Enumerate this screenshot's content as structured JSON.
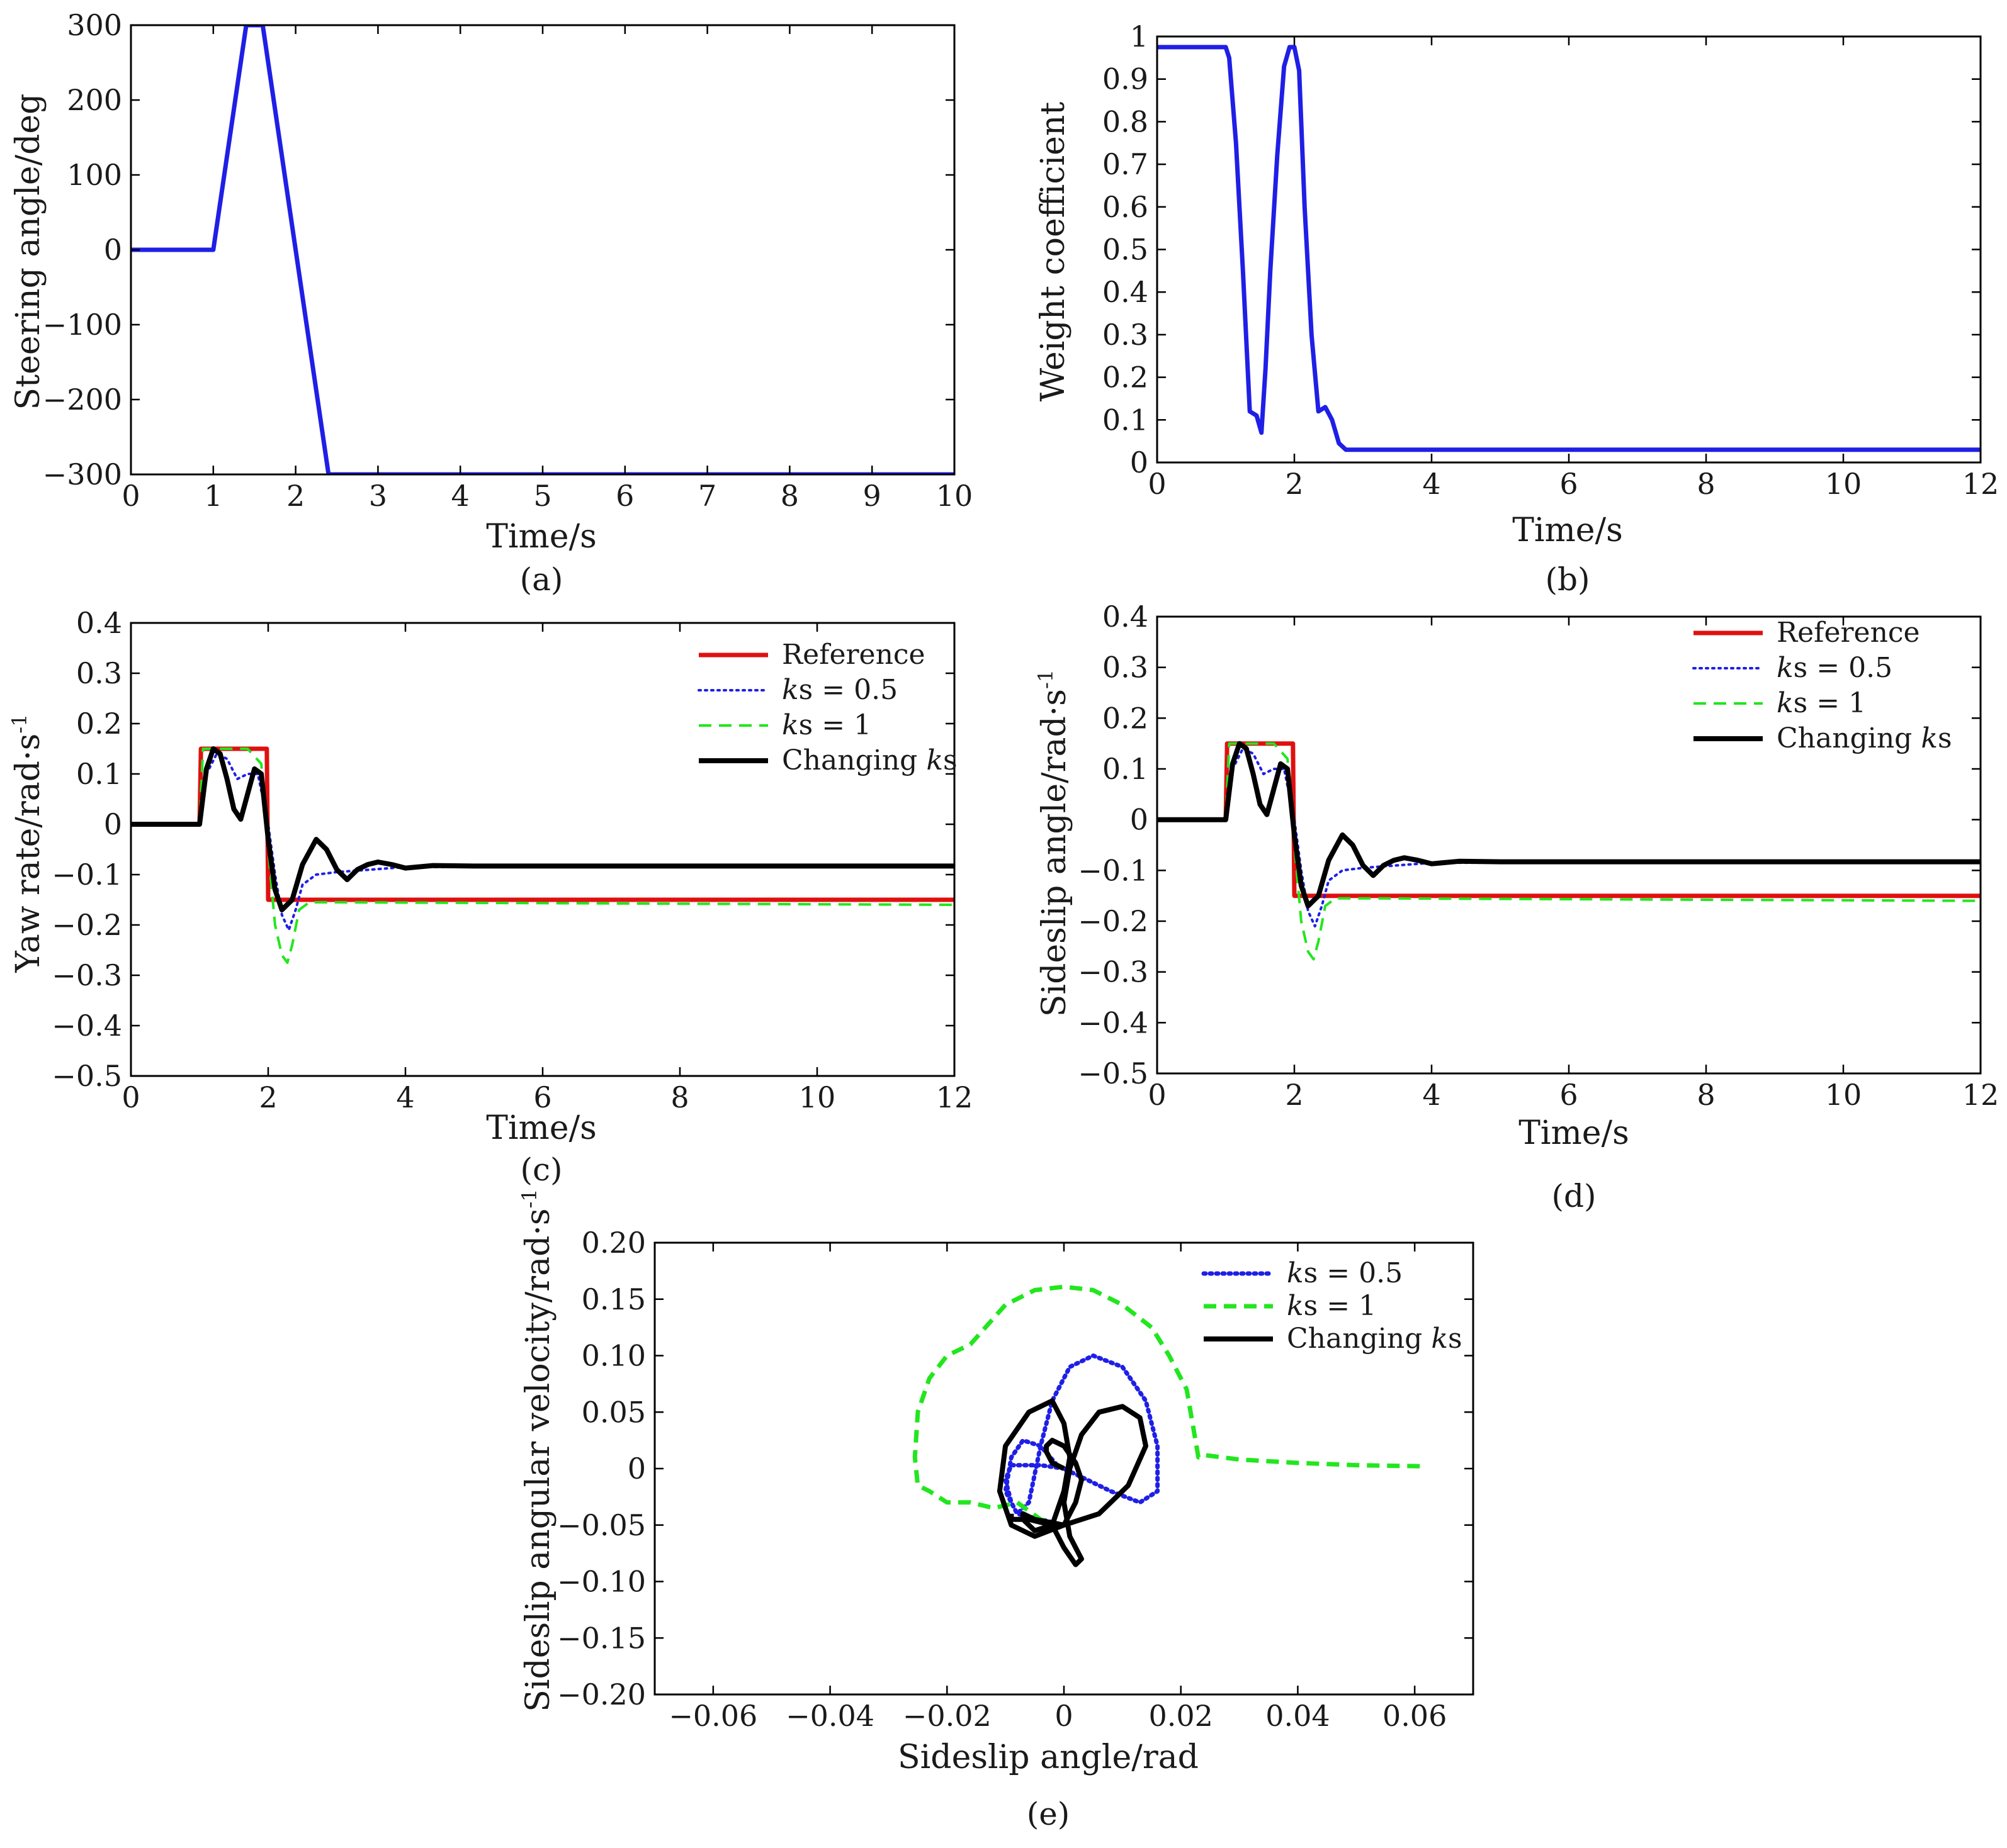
{
  "figure": {
    "panel_labels": [
      "(a)",
      "(b)",
      "(c)",
      "(d)",
      "(e)"
    ]
  },
  "colors": {
    "blue": "#1f1fe6",
    "red": "#e01010",
    "green": "#22e61e",
    "black": "#000000"
  },
  "chart_data": [
    {
      "id": "a",
      "type": "line",
      "title": "",
      "panel_label": "(a)",
      "xlabel": "Time/s",
      "ylabel": "Steering angle/deg",
      "xlim": [
        0,
        10
      ],
      "ylim": [
        -300,
        300
      ],
      "xticks": [
        0,
        1,
        2,
        3,
        4,
        5,
        6,
        7,
        8,
        9,
        10
      ],
      "xtick_labels": [
        "0",
        "1",
        "2",
        "3",
        "4",
        "5",
        "6",
        "7",
        "8",
        "9",
        "10"
      ],
      "yticks": [
        -300,
        -200,
        -100,
        0,
        100,
        200,
        300
      ],
      "ytick_labels": [
        "−300",
        "−200",
        "−100",
        "0",
        "100",
        "200",
        "300"
      ],
      "series": [
        {
          "name": "Steering angle",
          "color": "#1f1fe6",
          "dash": "solid",
          "x": [
            0,
            1.0,
            1.4,
            1.6,
            2.4,
            10
          ],
          "y": [
            0,
            0,
            300,
            300,
            -300,
            -300
          ]
        }
      ]
    },
    {
      "id": "b",
      "type": "line",
      "title": "",
      "panel_label": "(b)",
      "xlabel": "Time/s",
      "ylabel": "Weight coefficient",
      "xlim": [
        0,
        12
      ],
      "ylim": [
        0,
        1
      ],
      "xticks": [
        0,
        2,
        4,
        6,
        8,
        10,
        12
      ],
      "xtick_labels": [
        "0",
        "2",
        "4",
        "6",
        "8",
        "10",
        "12"
      ],
      "yticks": [
        0,
        0.1,
        0.2,
        0.3,
        0.4,
        0.5,
        0.6,
        0.7,
        0.8,
        0.9,
        1
      ],
      "ytick_labels": [
        "0",
        "0.1",
        "0.2",
        "0.3",
        "0.4",
        "0.5",
        "0.6",
        "0.7",
        "0.8",
        "0.9",
        "1"
      ],
      "series": [
        {
          "name": "Weight coefficient",
          "color": "#1f1fe6",
          "dash": "solid",
          "x": [
            0,
            1.0,
            1.05,
            1.15,
            1.25,
            1.35,
            1.45,
            1.52,
            1.58,
            1.65,
            1.75,
            1.85,
            1.93,
            2.0,
            2.07,
            2.15,
            2.25,
            2.35,
            2.45,
            2.55,
            2.65,
            2.75,
            3.0,
            12
          ],
          "y": [
            0.975,
            0.975,
            0.95,
            0.75,
            0.45,
            0.12,
            0.11,
            0.07,
            0.22,
            0.45,
            0.72,
            0.93,
            0.975,
            0.975,
            0.92,
            0.6,
            0.3,
            0.12,
            0.13,
            0.1,
            0.045,
            0.03,
            0.03,
            0.03
          ]
        }
      ]
    },
    {
      "id": "c",
      "type": "line",
      "title": "",
      "panel_label": "(c)",
      "xlabel": "Time/s",
      "ylabel": "Yaw rate/rad·s",
      "ylabel_sup": "-1",
      "xlim": [
        0,
        12
      ],
      "ylim": [
        -0.5,
        0.4
      ],
      "xticks": [
        0,
        2,
        4,
        6,
        8,
        10,
        12
      ],
      "xtick_labels": [
        "0",
        "2",
        "4",
        "6",
        "8",
        "10",
        "12"
      ],
      "yticks": [
        -0.5,
        -0.4,
        -0.3,
        -0.2,
        -0.1,
        0,
        0.1,
        0.2,
        0.3,
        0.4
      ],
      "ytick_labels": [
        "−0.5",
        "−0.4",
        "−0.3",
        "−0.2",
        "−0.1",
        "0",
        "0.1",
        "0.2",
        "0.3",
        "0.4"
      ],
      "legend": [
        "Reference",
        "ks = 0.5",
        "ks = 1",
        "Changing ks"
      ],
      "series": [
        {
          "name": "Reference",
          "color": "#e01010",
          "dash": "solid",
          "x": [
            0,
            1.0,
            1.02,
            1.98,
            2.0,
            12
          ],
          "y": [
            0,
            0,
            0.15,
            0.15,
            -0.15,
            -0.15
          ]
        },
        {
          "name": "ks = 0.5",
          "color": "#1f1fe6",
          "dash": "dotted",
          "x": [
            0,
            1.0,
            1.1,
            1.25,
            1.4,
            1.55,
            1.7,
            1.85,
            2.0,
            2.1,
            2.2,
            2.3,
            2.4,
            2.5,
            2.7,
            3.0,
            3.5,
            4.0,
            12
          ],
          "y": [
            0,
            0,
            0.1,
            0.14,
            0.13,
            0.09,
            0.1,
            0.1,
            0.0,
            -0.1,
            -0.18,
            -0.21,
            -0.17,
            -0.12,
            -0.1,
            -0.095,
            -0.09,
            -0.085,
            -0.083
          ]
        },
        {
          "name": "ks = 1",
          "color": "#22e61e",
          "dash": "dashed",
          "x": [
            0,
            1.0,
            1.05,
            1.7,
            1.9,
            2.0,
            2.1,
            2.2,
            2.28,
            2.35,
            2.45,
            2.6,
            3.0,
            12
          ],
          "y": [
            0,
            0,
            0.15,
            0.15,
            0.12,
            -0.05,
            -0.2,
            -0.26,
            -0.275,
            -0.24,
            -0.17,
            -0.155,
            -0.155,
            -0.16
          ]
        },
        {
          "name": "Changing ks",
          "color": "#000000",
          "dash": "solid",
          "x": [
            0,
            1.0,
            1.1,
            1.2,
            1.3,
            1.4,
            1.5,
            1.6,
            1.7,
            1.8,
            1.9,
            2.0,
            2.1,
            2.2,
            2.35,
            2.5,
            2.7,
            2.85,
            3.0,
            3.15,
            3.3,
            3.45,
            3.6,
            3.8,
            4.0,
            4.4,
            5.0,
            12
          ],
          "y": [
            0,
            0,
            0.11,
            0.15,
            0.14,
            0.09,
            0.03,
            0.01,
            0.06,
            0.11,
            0.1,
            -0.03,
            -0.13,
            -0.17,
            -0.15,
            -0.08,
            -0.03,
            -0.05,
            -0.09,
            -0.11,
            -0.09,
            -0.08,
            -0.075,
            -0.08,
            -0.087,
            -0.082,
            -0.083,
            -0.083
          ]
        }
      ]
    },
    {
      "id": "d",
      "type": "line",
      "title": "",
      "panel_label": "(d)",
      "xlabel": "Time/s",
      "ylabel": "Sideslip angle/rad·s",
      "ylabel_sup": "-1",
      "xlim": [
        0,
        12
      ],
      "ylim": [
        -0.5,
        0.4
      ],
      "xticks": [
        0,
        2,
        4,
        6,
        8,
        10,
        12
      ],
      "xtick_labels": [
        "0",
        "2",
        "4",
        "6",
        "8",
        "10",
        "12"
      ],
      "yticks": [
        -0.5,
        -0.4,
        -0.3,
        -0.2,
        -0.1,
        0,
        0.1,
        0.2,
        0.3,
        0.4
      ],
      "ytick_labels": [
        "−0.5",
        "−0.4",
        "−0.3",
        "−0.2",
        "−0.1",
        "0",
        "0.1",
        "0.2",
        "0.3",
        "0.4"
      ],
      "legend": [
        "Reference",
        "ks = 0.5",
        "ks = 1",
        "Changing ks"
      ],
      "series": [
        {
          "name": "Reference",
          "color": "#e01010",
          "dash": "solid",
          "x": [
            0,
            1.0,
            1.02,
            1.98,
            2.0,
            12
          ],
          "y": [
            0,
            0,
            0.15,
            0.15,
            -0.15,
            -0.15
          ]
        },
        {
          "name": "ks = 0.5",
          "color": "#1f1fe6",
          "dash": "dotted",
          "x": [
            0,
            1.0,
            1.1,
            1.25,
            1.4,
            1.55,
            1.7,
            1.85,
            2.0,
            2.1,
            2.2,
            2.3,
            2.4,
            2.5,
            2.7,
            3.0,
            3.5,
            4.0,
            12
          ],
          "y": [
            0,
            0,
            0.1,
            0.14,
            0.13,
            0.09,
            0.1,
            0.1,
            0.0,
            -0.1,
            -0.18,
            -0.21,
            -0.17,
            -0.12,
            -0.1,
            -0.095,
            -0.09,
            -0.085,
            -0.083
          ]
        },
        {
          "name": "ks = 1",
          "color": "#22e61e",
          "dash": "dashed",
          "x": [
            0,
            1.0,
            1.05,
            1.7,
            1.9,
            2.0,
            2.1,
            2.2,
            2.28,
            2.35,
            2.45,
            2.6,
            3.0,
            12
          ],
          "y": [
            0,
            0,
            0.15,
            0.15,
            0.12,
            -0.05,
            -0.2,
            -0.26,
            -0.275,
            -0.24,
            -0.17,
            -0.155,
            -0.155,
            -0.16
          ]
        },
        {
          "name": "Changing ks",
          "color": "#000000",
          "dash": "solid",
          "x": [
            0,
            1.0,
            1.1,
            1.2,
            1.3,
            1.4,
            1.5,
            1.6,
            1.7,
            1.8,
            1.9,
            2.0,
            2.1,
            2.2,
            2.35,
            2.5,
            2.7,
            2.85,
            3.0,
            3.15,
            3.3,
            3.45,
            3.6,
            3.8,
            4.0,
            4.4,
            5.0,
            12
          ],
          "y": [
            0,
            0,
            0.11,
            0.15,
            0.14,
            0.09,
            0.03,
            0.01,
            0.06,
            0.11,
            0.1,
            -0.03,
            -0.13,
            -0.17,
            -0.15,
            -0.08,
            -0.03,
            -0.05,
            -0.09,
            -0.11,
            -0.09,
            -0.08,
            -0.075,
            -0.08,
            -0.087,
            -0.082,
            -0.083,
            -0.083
          ]
        }
      ]
    },
    {
      "id": "e",
      "type": "line",
      "title": "",
      "panel_label": "(e)",
      "xlabel": "Sideslip angle/rad",
      "ylabel": "Sideslip angular velocity/rad·s",
      "ylabel_sup": "-1",
      "xlim": [
        -0.07,
        0.07
      ],
      "ylim": [
        -0.2,
        0.2
      ],
      "xticks": [
        -0.06,
        -0.04,
        -0.02,
        0,
        0.02,
        0.04,
        0.06
      ],
      "xtick_labels": [
        "−0.06",
        "−0.04",
        "−0.02",
        "0",
        "0.02",
        "0.04",
        "0.06"
      ],
      "yticks": [
        -0.2,
        -0.15,
        -0.1,
        -0.05,
        0,
        0.05,
        0.1,
        0.15,
        0.2
      ],
      "ytick_labels": [
        "−0.20",
        "−0.15",
        "−0.10",
        "−0.05",
        "0",
        "0.05",
        "0.10",
        "0.15",
        "0.20"
      ],
      "legend": [
        "ks = 0.5",
        "ks = 1",
        "Changing ks"
      ],
      "series": [
        {
          "name": "ks = 0.5",
          "color": "#1f1fe6",
          "dash": "dotted",
          "x": [
            0,
            -0.004,
            -0.009,
            -0.01,
            -0.009,
            -0.008,
            -0.006,
            -0.004,
            -0.002,
            0.001,
            0.005,
            0.01,
            0.014,
            0.016,
            0.016,
            0.013,
            0.008,
            0.004,
            0.002,
            -0.001,
            -0.004,
            -0.007,
            -0.009,
            -0.01,
            -0.008,
            -0.004,
            0
          ],
          "y": [
            0,
            0.003,
            0.003,
            -0.01,
            -0.03,
            -0.04,
            -0.03,
            0.02,
            0.06,
            0.09,
            0.1,
            0.09,
            0.06,
            0.02,
            -0.02,
            -0.03,
            -0.02,
            -0.01,
            -0.005,
            0.002,
            0.02,
            0.025,
            0.01,
            -0.02,
            -0.04,
            -0.045,
            -0.05
          ]
        },
        {
          "name": "ks = 1",
          "color": "#22e61e",
          "dash": "dashed",
          "x": [
            0,
            -0.004,
            -0.008,
            -0.012,
            -0.016,
            -0.02,
            -0.023,
            -0.025,
            -0.0255,
            -0.025,
            -0.023,
            -0.02,
            -0.016,
            -0.01,
            -0.005,
            0,
            0.005,
            0.01,
            0.015,
            0.018,
            0.021,
            0.022,
            0.023,
            0.024,
            0.03,
            0.04,
            0.05,
            0.062
          ],
          "y": [
            -0.05,
            -0.045,
            -0.03,
            -0.035,
            -0.03,
            -0.03,
            -0.02,
            -0.015,
            0.01,
            0.05,
            0.08,
            0.1,
            0.11,
            0.145,
            0.158,
            0.161,
            0.158,
            0.145,
            0.125,
            0.1,
            0.07,
            0.04,
            0.01,
            0.012,
            0.008,
            0.005,
            0.003,
            0.002
          ]
        },
        {
          "name": "Changing ks",
          "color": "#000000",
          "dash": "solid",
          "x": [
            0,
            -0.002,
            -0.003,
            -0.003,
            -0.002,
            0.0,
            0.002,
            0.003,
            0.002,
            0,
            -0.005,
            -0.009,
            -0.011,
            -0.01,
            -0.006,
            -0.002,
            0.0,
            0.001,
            0.0,
            -0.002,
            -0.005,
            -0.007,
            -0.007,
            -0.005,
            0,
            0.006,
            0.011,
            0.014,
            0.013,
            0.01,
            0.006,
            0.003,
            0.001,
            0.0,
            0.001,
            0.003,
            0.002,
            0.0,
            -0.002,
            -0.006,
            -0.009,
            -0.009
          ],
          "y": [
            0,
            0.005,
            0.015,
            0.02,
            0.025,
            0.02,
            0.005,
            -0.01,
            -0.03,
            -0.05,
            -0.06,
            -0.05,
            -0.02,
            0.02,
            0.05,
            0.06,
            0.04,
            0.01,
            -0.02,
            -0.05,
            -0.055,
            -0.045,
            -0.04,
            -0.045,
            -0.05,
            -0.04,
            -0.015,
            0.02,
            0.045,
            0.055,
            0.05,
            0.03,
            0.0,
            -0.03,
            -0.06,
            -0.08,
            -0.085,
            -0.07,
            -0.05,
            -0.045,
            -0.045,
            -0.04
          ]
        }
      ]
    }
  ]
}
